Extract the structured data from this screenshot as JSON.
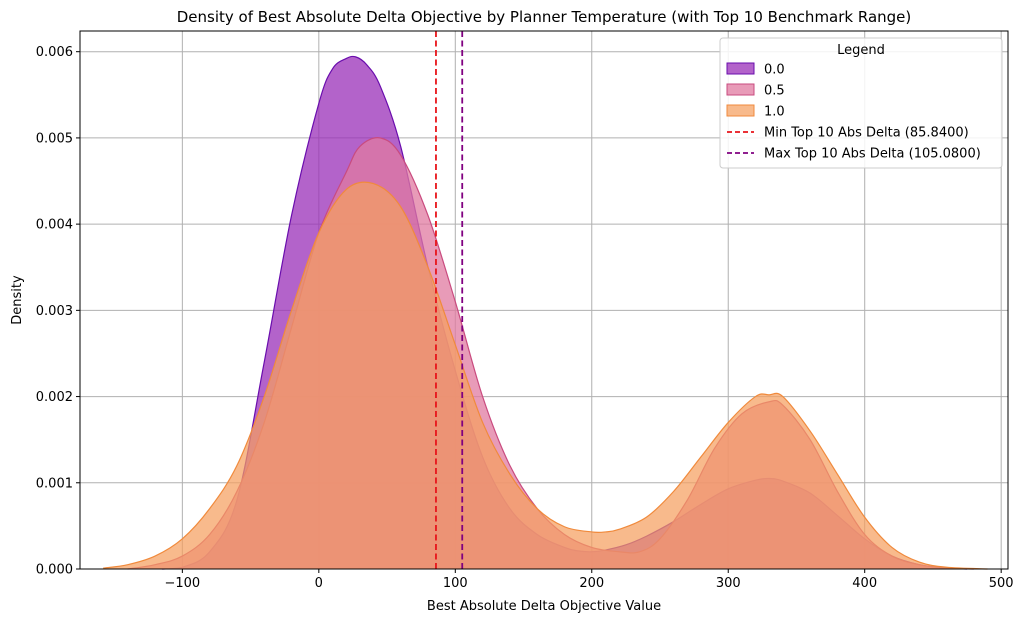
{
  "chart_data": {
    "type": "area",
    "title": "Density of Best Absolute Delta Objective by Planner Temperature (with Top 10 Benchmark Range)",
    "xlabel": "Best Absolute Delta Objective Value",
    "ylabel": "Density",
    "xlim": [
      -175,
      505
    ],
    "ylim": [
      0,
      0.00624
    ],
    "xticks": [
      -100,
      0,
      100,
      200,
      300,
      400,
      500
    ],
    "xtick_labels": [
      "−100",
      "0",
      "100",
      "200",
      "300",
      "400",
      "500"
    ],
    "yticks": [
      0,
      0.001,
      0.002,
      0.003,
      0.004,
      0.005,
      0.006
    ],
    "ytick_labels": [
      "0.000",
      "0.001",
      "0.002",
      "0.003",
      "0.004",
      "0.005",
      "0.006"
    ],
    "grid": true,
    "legend": {
      "title": "Legend",
      "placement": "top-right"
    },
    "series": [
      {
        "name": "0.0",
        "fill": "#9a2fb8",
        "stroke": "#6a0dad",
        "fill_opacity": 0.75,
        "x": [
          -115,
          -100,
          -80,
          -60,
          -40,
          -20,
          0,
          10,
          20,
          27,
          35,
          45,
          60,
          80,
          100,
          120,
          140,
          160,
          180,
          190,
          200,
          210,
          225,
          240,
          260,
          280,
          300,
          320,
          330,
          340,
          360,
          380,
          400,
          420,
          440,
          460,
          475
        ],
        "y": [
          0.0,
          2e-05,
          0.0002,
          0.0008,
          0.0024,
          0.0041,
          0.0054,
          0.0058,
          0.00592,
          0.00594,
          0.00585,
          0.0056,
          0.0049,
          0.0035,
          0.0023,
          0.0013,
          0.0007,
          0.0004,
          0.00025,
          0.00021,
          0.0002,
          0.00022,
          0.00028,
          0.00038,
          0.00055,
          0.00075,
          0.00093,
          0.00103,
          0.00105,
          0.00102,
          0.00088,
          0.00062,
          0.00035,
          0.00015,
          5e-05,
          1e-05,
          0.0
        ]
      },
      {
        "name": "0.5",
        "fill": "#e07aa0",
        "stroke": "#c94b7f",
        "fill_opacity": 0.75,
        "x": [
          -140,
          -120,
          -100,
          -80,
          -60,
          -40,
          -20,
          0,
          20,
          30,
          45,
          60,
          80,
          100,
          120,
          140,
          160,
          180,
          200,
          220,
          235,
          250,
          270,
          290,
          310,
          330,
          340,
          360,
          380,
          400,
          420,
          440,
          460,
          480
        ],
        "y": [
          0.0,
          5e-05,
          0.00015,
          0.0004,
          0.0009,
          0.0017,
          0.0028,
          0.0039,
          0.0046,
          0.0049,
          0.005,
          0.0048,
          0.0041,
          0.0031,
          0.002,
          0.0012,
          0.0007,
          0.0004,
          0.00025,
          0.0002,
          0.0002,
          0.00035,
          0.0008,
          0.0014,
          0.0018,
          0.00194,
          0.0019,
          0.0015,
          0.0009,
          0.0004,
          0.00015,
          5e-05,
          1e-05,
          0.0
        ]
      },
      {
        "name": "1.0",
        "fill": "#f5a060",
        "stroke": "#f08a3c",
        "fill_opacity": 0.72,
        "x": [
          -158,
          -140,
          -120,
          -100,
          -80,
          -60,
          -40,
          -20,
          0,
          20,
          40,
          60,
          80,
          100,
          120,
          140,
          160,
          180,
          200,
          210,
          220,
          240,
          260,
          280,
          300,
          320,
          330,
          340,
          360,
          380,
          400,
          420,
          440,
          460,
          490
        ],
        "y": [
          1e-05,
          5e-05,
          0.00015,
          0.00035,
          0.0007,
          0.0012,
          0.002,
          0.003,
          0.0039,
          0.0044,
          0.00447,
          0.0042,
          0.0035,
          0.0026,
          0.0017,
          0.0011,
          0.0007,
          0.00049,
          0.00043,
          0.00043,
          0.00046,
          0.0006,
          0.0009,
          0.0013,
          0.0017,
          0.002,
          0.00202,
          0.002,
          0.0016,
          0.0011,
          0.0006,
          0.00025,
          8e-05,
          2e-05,
          0.0
        ]
      }
    ],
    "reference_lines": [
      {
        "name": "Min Top 10 Abs Delta (85.8400)",
        "x": 85.84,
        "color": "#e8141a"
      },
      {
        "name": "Max Top 10 Abs Delta (105.0800)",
        "x": 105.08,
        "color": "#800080"
      }
    ]
  }
}
